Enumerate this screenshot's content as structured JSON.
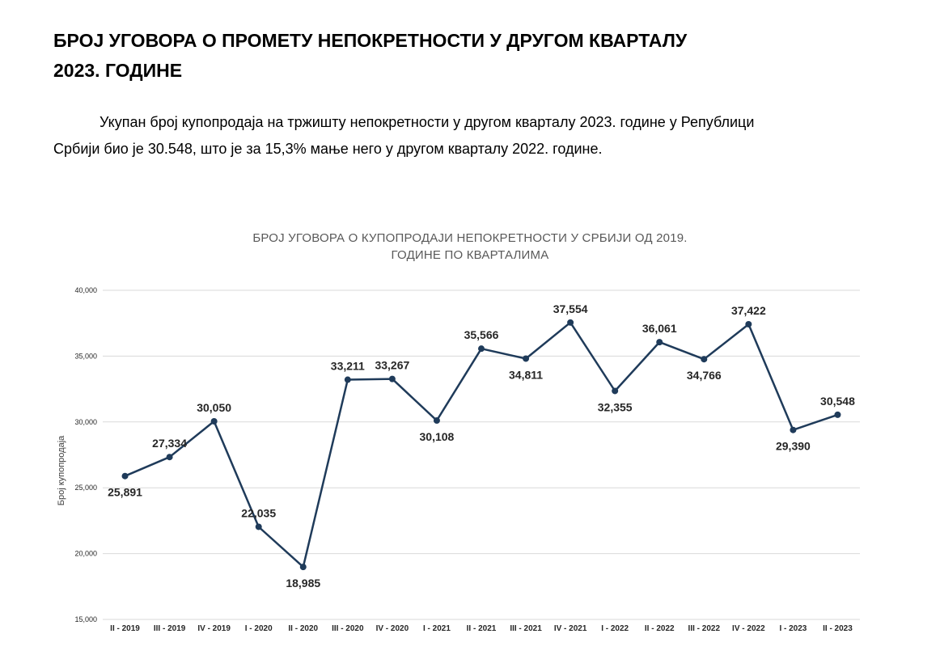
{
  "heading": {
    "line1": "БРОЈ УГОВОРА О ПРОМЕТУ НЕПОКРЕТНОСТИ У ДРУГОМ КВАРТАЛУ",
    "line2": "2023. ГОДИНЕ"
  },
  "paragraph": {
    "line1": "Укупан број купопродаја на тржишту непокретности у другом кварталу 2023. године у Републици",
    "line2": "Србији био је 30.548, што је за 15,3%  мање него у другом кварталу 2022. године."
  },
  "chart_data": {
    "type": "line",
    "title_lines": [
      "БРОЈ УГОВОРА О КУПОПРОДАЈИ НЕПОКРЕТНОСТИ У СРБИЈИ ОД 2019.",
      "ГОДИНЕ ПО КВАРТАЛИМА"
    ],
    "ylabel": "Број купопродаја",
    "xlabel": "",
    "ylim": [
      15000,
      40000
    ],
    "yticks": [
      15000,
      20000,
      25000,
      30000,
      35000,
      40000
    ],
    "ytick_labels": [
      "15,000",
      "20,000",
      "25,000",
      "30,000",
      "35,000",
      "40,000"
    ],
    "grid": true,
    "categories": [
      "II - 2019",
      "III - 2019",
      "IV - 2019",
      "I - 2020",
      "II - 2020",
      "III - 2020",
      "IV - 2020",
      "I - 2021",
      "II - 2021",
      "III - 2021",
      "IV - 2021",
      "I - 2022",
      "II - 2022",
      "III - 2022",
      "IV - 2022",
      "I - 2023",
      "II - 2023"
    ],
    "values": [
      25891,
      27334,
      30050,
      22035,
      18985,
      33211,
      33267,
      30108,
      35566,
      34811,
      37554,
      32355,
      36061,
      34766,
      37422,
      29390,
      30548
    ],
    "data_labels": [
      "25,891",
      "27,334",
      "30,050",
      "22,035",
      "18,985",
      "33,211",
      "33,267",
      "30,108",
      "35,566",
      "34,811",
      "37,554",
      "32,355",
      "36,061",
      "34,766",
      "37,422",
      "29,390",
      "30,548"
    ],
    "label_positions": [
      "below",
      "above",
      "above",
      "above",
      "below",
      "above",
      "above",
      "below",
      "above",
      "below",
      "above",
      "below",
      "above",
      "below",
      "above",
      "below",
      "above"
    ],
    "colors": {
      "line": "#1f3b5a",
      "grid": "#d9d9d9",
      "text": "#262626"
    }
  }
}
